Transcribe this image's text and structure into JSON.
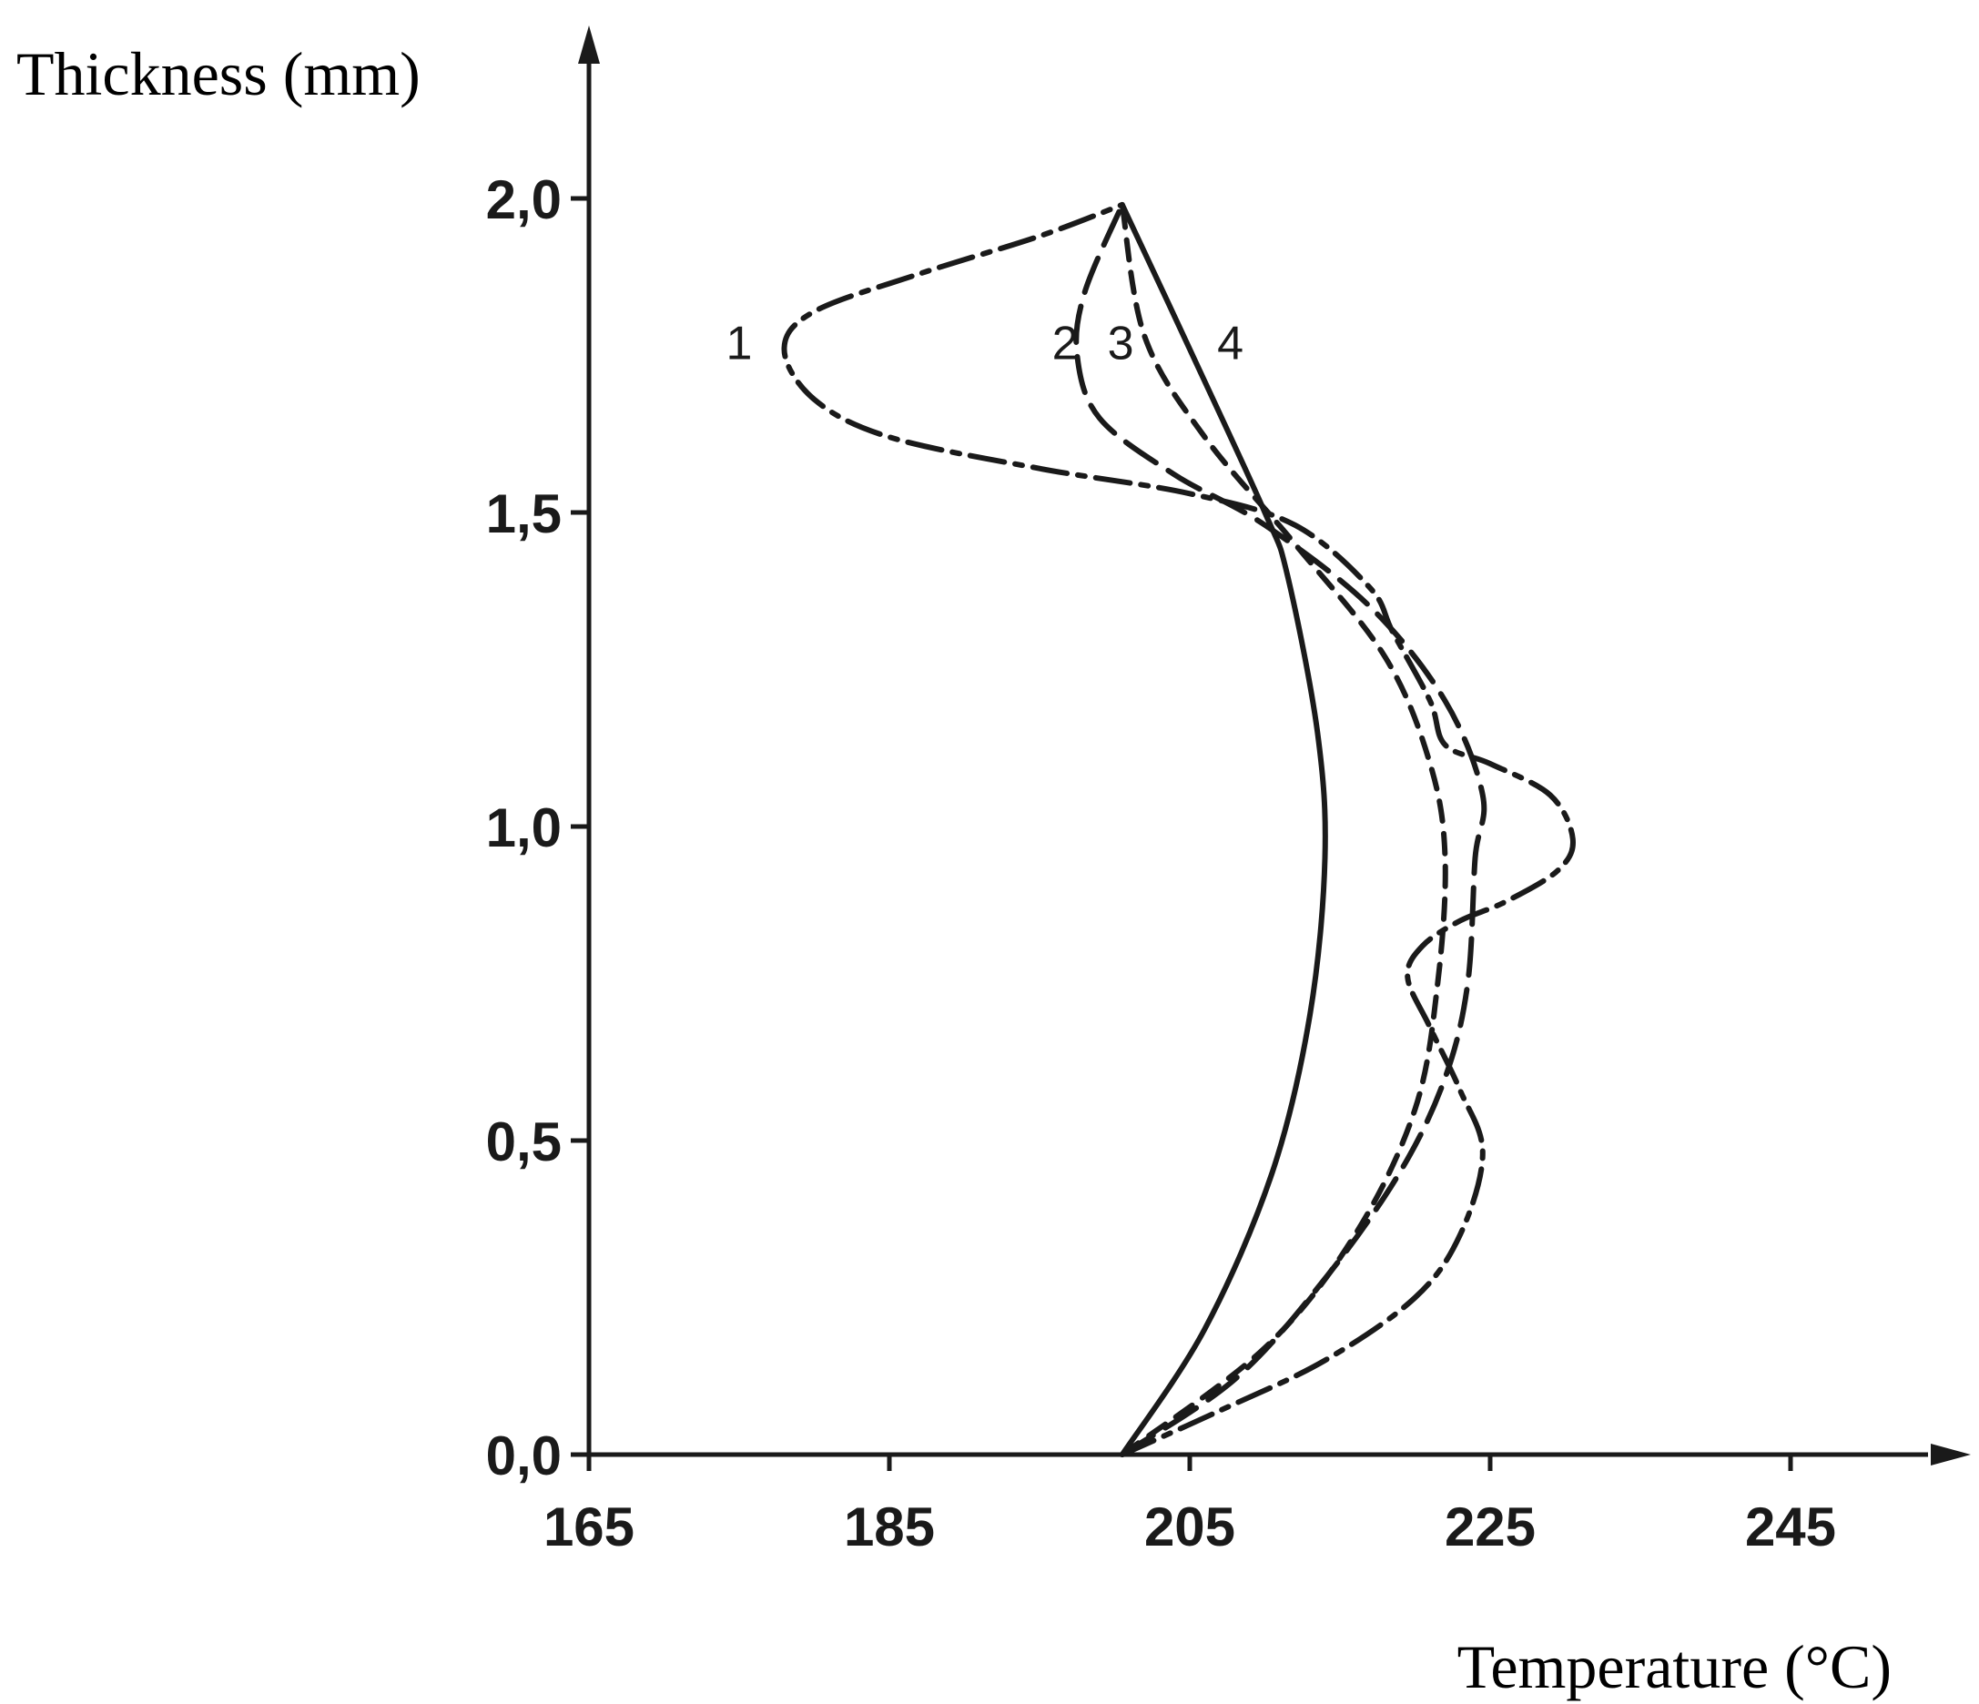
{
  "chart_data": {
    "type": "line",
    "ylabel": "Thickness (mm)",
    "xlabel": "Temperature (°C)",
    "xlim": [
      165,
      255
    ],
    "ylim": [
      0,
      2.3
    ],
    "xticks": [
      {
        "value": 165,
        "label": "165"
      },
      {
        "value": 185,
        "label": "185"
      },
      {
        "value": 205,
        "label": "205"
      },
      {
        "value": 225,
        "label": "225"
      },
      {
        "value": 245,
        "label": "245"
      }
    ],
    "yticks": [
      {
        "value": 0.0,
        "label": "0,0"
      },
      {
        "value": 0.5,
        "label": "0,5"
      },
      {
        "value": 1.0,
        "label": "1,0"
      },
      {
        "value": 1.5,
        "label": "1,5"
      },
      {
        "value": 2.0,
        "label": "2,0"
      }
    ],
    "grid": false,
    "legend": "none",
    "series": [
      {
        "label": "1",
        "dash": "dashdot",
        "label_pos": [
          175,
          1.77
        ],
        "points": [
          [
            200.5,
            0.0
          ],
          [
            207,
            0.07
          ],
          [
            214,
            0.15
          ],
          [
            220,
            0.25
          ],
          [
            223,
            0.35
          ],
          [
            224.5,
            0.48
          ],
          [
            223,
            0.58
          ],
          [
            221,
            0.68
          ],
          [
            219.5,
            0.76
          ],
          [
            220.5,
            0.81
          ],
          [
            223,
            0.85
          ],
          [
            226,
            0.88
          ],
          [
            229.5,
            0.93
          ],
          [
            230.5,
            0.98
          ],
          [
            229,
            1.05
          ],
          [
            225,
            1.1
          ],
          [
            222,
            1.13
          ],
          [
            221,
            1.2
          ],
          [
            218.5,
            1.31
          ],
          [
            217,
            1.38
          ],
          [
            212,
            1.48
          ],
          [
            205,
            1.53
          ],
          [
            195,
            1.57
          ],
          [
            185,
            1.62
          ],
          [
            180,
            1.68
          ],
          [
            178,
            1.76
          ],
          [
            180,
            1.82
          ],
          [
            187,
            1.88
          ],
          [
            195,
            1.94
          ],
          [
            200.5,
            1.99
          ]
        ]
      },
      {
        "label": "2",
        "dash": "longdash",
        "label_pos": [
          196.7,
          1.77
        ],
        "points": [
          [
            200.5,
            0.0
          ],
          [
            208,
            0.12
          ],
          [
            214,
            0.28
          ],
          [
            219,
            0.45
          ],
          [
            222,
            0.6
          ],
          [
            223.5,
            0.75
          ],
          [
            224,
            0.95
          ],
          [
            224.5,
            1.05
          ],
          [
            222,
            1.2
          ],
          [
            217,
            1.35
          ],
          [
            210,
            1.48
          ],
          [
            204,
            1.56
          ],
          [
            199,
            1.65
          ],
          [
            197.5,
            1.75
          ],
          [
            198,
            1.85
          ],
          [
            200.5,
            1.99
          ]
        ]
      },
      {
        "label": "3",
        "dash": "dashed",
        "label_pos": [
          200.4,
          1.77
        ],
        "points": [
          [
            200.5,
            0.0
          ],
          [
            210,
            0.17
          ],
          [
            216,
            0.35
          ],
          [
            220,
            0.55
          ],
          [
            221.5,
            0.75
          ],
          [
            222,
            0.95
          ],
          [
            221,
            1.1
          ],
          [
            218,
            1.27
          ],
          [
            212,
            1.45
          ],
          [
            206,
            1.62
          ],
          [
            202,
            1.78
          ],
          [
            200.5,
            1.99
          ]
        ]
      },
      {
        "label": "4",
        "dash": "solid",
        "label_pos": [
          207.7,
          1.77
        ],
        "points": [
          [
            200.5,
            0.0
          ],
          [
            206,
            0.2
          ],
          [
            210.5,
            0.45
          ],
          [
            213,
            0.7
          ],
          [
            214,
            0.95
          ],
          [
            213.5,
            1.15
          ],
          [
            211.5,
            1.4
          ],
          [
            210,
            1.5
          ],
          [
            205,
            1.76
          ],
          [
            200.5,
            1.99
          ]
        ]
      }
    ]
  }
}
